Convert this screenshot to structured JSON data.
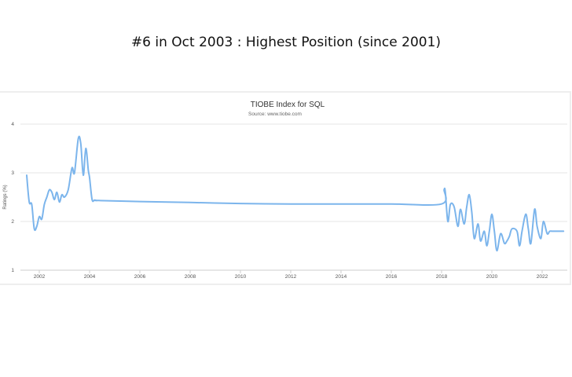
{
  "headline": "#6 in Oct 2003 : Highest Position (since 2001)",
  "chart_data": {
    "type": "line",
    "title": "TIOBE Index for SQL",
    "subtitle": "Source: www.tiobe.com",
    "ylabel": "Ratings (%)",
    "xlabel": "",
    "xlim": [
      2001.25,
      2023.0
    ],
    "ylim": [
      1,
      4
    ],
    "yticks": [
      1,
      2,
      3,
      4
    ],
    "xticks": [
      2002,
      2004,
      2006,
      2008,
      2010,
      2012,
      2014,
      2016,
      2018,
      2020,
      2022
    ],
    "grid": true,
    "legend": "none",
    "colors": {
      "line": "#7cb5ec"
    },
    "series": [
      {
        "x": [
          2001.5,
          2001.6,
          2001.7,
          2001.8,
          2001.9,
          2002.0,
          2002.1,
          2002.2,
          2002.3,
          2002.4,
          2002.5,
          2002.6,
          2002.7,
          2002.8,
          2002.9,
          2003.0,
          2003.15,
          2003.3,
          2003.4,
          2003.55,
          2003.65,
          2003.75,
          2003.85,
          2003.95,
          2004.0,
          2004.1,
          2004.2,
          2004.3,
          2004.35,
          2006.0,
          2008.0,
          2010.0,
          2012.0,
          2014.0,
          2016.0,
          2018.0,
          2018.1,
          2018.15,
          2018.25,
          2018.35,
          2018.5,
          2018.65,
          2018.75,
          2018.9,
          2019.0,
          2019.1,
          2019.2,
          2019.3,
          2019.45,
          2019.55,
          2019.7,
          2019.8,
          2019.9,
          2020.0,
          2020.1,
          2020.2,
          2020.35,
          2020.5,
          2020.6,
          2020.7,
          2020.8,
          2021.0,
          2021.1,
          2021.2,
          2021.35,
          2021.45,
          2021.55,
          2021.7,
          2021.8,
          2021.95,
          2022.05,
          2022.2,
          2022.3,
          2022.4,
          2022.55,
          2022.65,
          2022.75,
          2022.85
        ],
        "y": [
          2.95,
          2.4,
          2.35,
          1.85,
          1.9,
          2.1,
          2.05,
          2.35,
          2.5,
          2.65,
          2.6,
          2.45,
          2.6,
          2.4,
          2.55,
          2.5,
          2.65,
          3.1,
          3.0,
          3.7,
          3.6,
          2.95,
          3.5,
          3.05,
          2.9,
          2.45,
          2.44,
          2.43,
          2.43,
          2.41,
          2.39,
          2.37,
          2.36,
          2.36,
          2.36,
          2.36,
          2.65,
          2.6,
          2.0,
          2.35,
          2.3,
          1.9,
          2.25,
          1.95,
          2.3,
          2.55,
          2.2,
          1.65,
          1.95,
          1.6,
          1.8,
          1.5,
          1.8,
          2.15,
          1.8,
          1.4,
          1.75,
          1.55,
          1.6,
          1.7,
          1.85,
          1.8,
          1.5,
          1.8,
          2.15,
          1.85,
          1.55,
          2.25,
          1.9,
          1.65,
          2.0,
          1.75,
          1.8,
          1.8,
          1.8,
          1.8,
          1.8,
          1.8
        ]
      }
    ]
  }
}
